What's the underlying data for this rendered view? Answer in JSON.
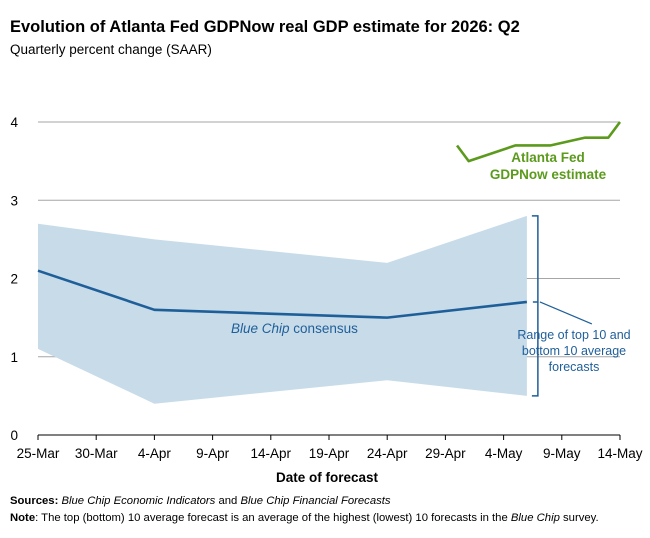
{
  "chart_data": {
    "type": "line",
    "title": "Evolution of Atlanta Fed GDPNow real GDP estimate for 2026: Q2",
    "subtitle": "Quarterly percent change (SAAR)",
    "xlabel": "Date of forecast",
    "ylabel": "",
    "ylim": [
      0,
      4
    ],
    "yticks": [
      0,
      1,
      2,
      3,
      4
    ],
    "xtick_labels": [
      "25-Mar",
      "30-Mar",
      "4-Apr",
      "9-Apr",
      "14-Apr",
      "19-Apr",
      "24-Apr",
      "29-Apr",
      "4-May",
      "9-May",
      "14-May"
    ],
    "grid": "horizontal",
    "series": [
      {
        "name": "Blue Chip consensus",
        "color": "#1f5f99",
        "points": [
          [
            "25-Mar",
            2.1
          ],
          [
            "4-Apr",
            1.6
          ],
          [
            "24-Apr",
            1.5
          ],
          [
            "6-May",
            1.7
          ]
        ]
      },
      {
        "name": "Range of top 10 and bottom 10 average forecasts",
        "type": "band",
        "color": "#c7dbe9",
        "upper": [
          [
            "25-Mar",
            2.7
          ],
          [
            "4-Apr",
            2.5
          ],
          [
            "24-Apr",
            2.2
          ],
          [
            "6-May",
            2.8
          ]
        ],
        "lower": [
          [
            "25-Mar",
            1.1
          ],
          [
            "4-Apr",
            0.4
          ],
          [
            "24-Apr",
            0.7
          ],
          [
            "6-May",
            0.5
          ]
        ]
      },
      {
        "name": "Atlanta Fed GDPNow estimate",
        "color": "#5b9a1c",
        "points": [
          [
            "30-Apr",
            3.7
          ],
          [
            "1-May",
            3.5
          ],
          [
            "5-May",
            3.7
          ],
          [
            "6-May",
            3.7
          ],
          [
            "7-May",
            3.7
          ],
          [
            "8-May",
            3.7
          ],
          [
            "11-May",
            3.8
          ],
          [
            "12-May",
            3.8
          ],
          [
            "13-May",
            3.8
          ],
          [
            "14-May",
            4.0
          ]
        ]
      }
    ],
    "annotations": {
      "gdpnow_line1": "Atlanta Fed",
      "gdpnow_line2": "GDPNow estimate",
      "bluechip_italic": "Blue Chip",
      "bluechip_rest": " consensus",
      "range_line1": "Range of top 10 and",
      "range_line2": "bottom 10 average",
      "range_line3": "forecasts"
    },
    "colors": {
      "bluechip": "#1f5f99",
      "band": "#c7dbe9",
      "gdpnow": "#5b9a1c",
      "grid": "#a6a6a6"
    }
  },
  "footer": {
    "sources_label": "Sources:",
    "sources_part1": "Blue Chip Economic Indicators",
    "sources_and": " and ",
    "sources_part2": "Blue Chip Financial Forecasts",
    "note_label": "Note",
    "note_part1": ": The top (bottom) 10 average forecast is an average of the highest (lowest) 10 forecasts in the ",
    "note_italic": "Blue Chip",
    "note_part2": " survey."
  }
}
